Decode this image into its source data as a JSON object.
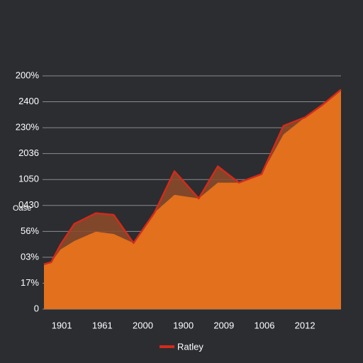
{
  "chart_data": {
    "type": "area",
    "ylabel": "Oase",
    "x": [
      -0.44,
      -0.26,
      -0.03,
      0.31,
      0.84,
      1.28,
      1.77,
      2.29,
      2.78,
      3.38,
      3.85,
      4.37,
      4.93,
      5.47,
      6.0,
      6.44,
      6.89
    ],
    "series": [
      {
        "name": "Ratley",
        "color": "#d42a1a",
        "values": [
          1.73,
          1.81,
          2.49,
          3.29,
          3.7,
          3.64,
          2.55,
          3.73,
          5.32,
          4.27,
          5.51,
          4.88,
          5.21,
          7.07,
          7.4,
          7.89,
          8.47
        ]
      },
      {
        "color": "#e2701c",
        "values": [
          1.73,
          1.81,
          2.3,
          2.63,
          2.99,
          2.9,
          2.55,
          3.73,
          4.41,
          4.27,
          4.88,
          4.88,
          5.21,
          6.74,
          7.4,
          7.89,
          8.47
        ]
      }
    ],
    "xlim": [
      -0.44,
      6.89
    ],
    "xticks": [
      {
        "value": 0,
        "label": "1901"
      },
      {
        "value": 1,
        "label": "1961"
      },
      {
        "value": 2,
        "label": "2000"
      },
      {
        "value": 3,
        "label": "1900"
      },
      {
        "value": 4,
        "label": "2009"
      },
      {
        "value": 5,
        "label": "1006"
      },
      {
        "value": 6,
        "label": "2012"
      }
    ],
    "ylim": [
      0,
      9
    ],
    "yticks": [
      0,
      {
        "value": 1,
        "label": "17%"
      },
      {
        "value": 2,
        "label": "03%"
      },
      {
        "value": 3,
        "label": "56%"
      },
      {
        "value": 4,
        "label": "0430"
      },
      {
        "value": 5,
        "label": "1050"
      },
      {
        "value": 6,
        "label": "2036"
      },
      {
        "value": 7,
        "label": "230%"
      },
      {
        "value": 8,
        "label": "2400"
      },
      {
        "value": 9,
        "label": "200%"
      }
    ],
    "grid": true
  }
}
